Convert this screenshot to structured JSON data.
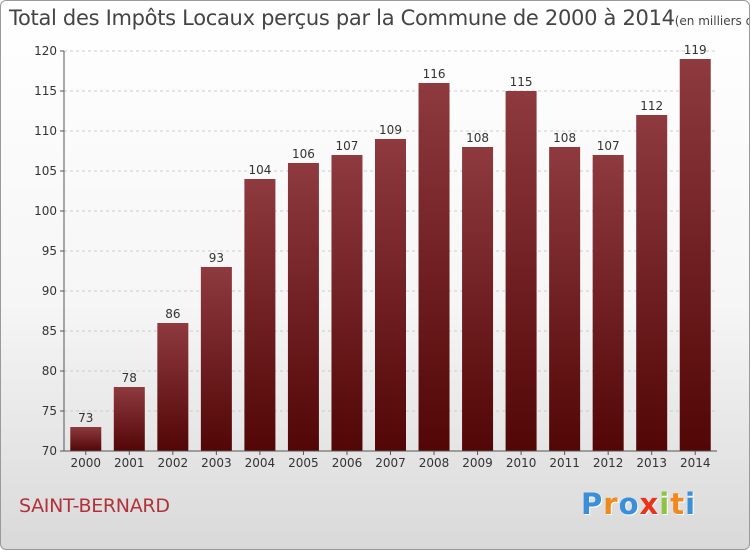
{
  "header": {
    "title": "Total des Impôts Locaux perçus par la Commune de 2000 à 2014",
    "unit": "(en milliers d'€)"
  },
  "commune": "SAINT-BERNARD",
  "logo": {
    "text": "Proxiti",
    "letters": [
      {
        "char": "P",
        "color": "#3a8fd8"
      },
      {
        "char": "r",
        "color": "#f08a1c"
      },
      {
        "char": "o",
        "color": "#3a8fd8"
      },
      {
        "char": "x",
        "color": "#e8341c"
      },
      {
        "char": "i",
        "color": "#8cc63f"
      },
      {
        "char": "t",
        "color": "#f08a1c"
      },
      {
        "char": "i",
        "color": "#3a8fd8"
      }
    ]
  },
  "colors": {
    "bar_top": "#8e3a3f",
    "bar_bottom": "#520606",
    "grid": "#cccccc",
    "axis": "#555555"
  },
  "chart_data": {
    "type": "bar",
    "categories": [
      "2000",
      "2001",
      "2002",
      "2003",
      "2004",
      "2005",
      "2006",
      "2007",
      "2008",
      "2009",
      "2010",
      "2011",
      "2012",
      "2013",
      "2014"
    ],
    "values": [
      73,
      78,
      86,
      93,
      104,
      106,
      107,
      109,
      116,
      108,
      115,
      108,
      107,
      112,
      119
    ],
    "ylim": [
      70,
      120
    ],
    "yticks": [
      70,
      75,
      80,
      85,
      90,
      95,
      100,
      105,
      110,
      115,
      120
    ],
    "grid": true
  }
}
